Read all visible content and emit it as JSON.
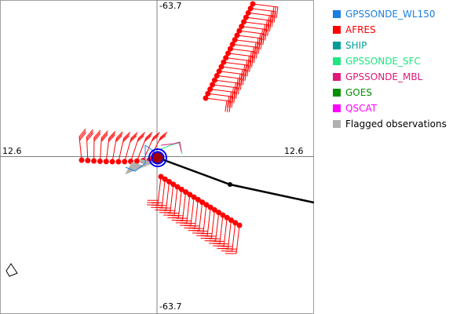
{
  "axis_labels": {
    "top": "-63.7",
    "bottom": "-63.7",
    "left": "12.6",
    "right": "12.6"
  },
  "legend": [
    {
      "label": "GPSSONDE_WL150",
      "color": "#1a7fe0"
    },
    {
      "label": "AFRES",
      "color": "#ff0000"
    },
    {
      "label": "SHIP",
      "color": "#009e96"
    },
    {
      "label": "GPSSONDE_SFC",
      "color": "#1ee682"
    },
    {
      "label": "GPSSONDE_MBL",
      "color": "#e0187a"
    },
    {
      "label": "GOES",
      "color": "#009000"
    },
    {
      "label": "QSCAT",
      "color": "#ff00ff"
    },
    {
      "label": "Flagged observations",
      "color": "#b0b0b0"
    }
  ],
  "colors": {
    "axes": "#808080",
    "track": "#000000",
    "center": "#0000ff",
    "center_fill": "#a00000"
  }
}
